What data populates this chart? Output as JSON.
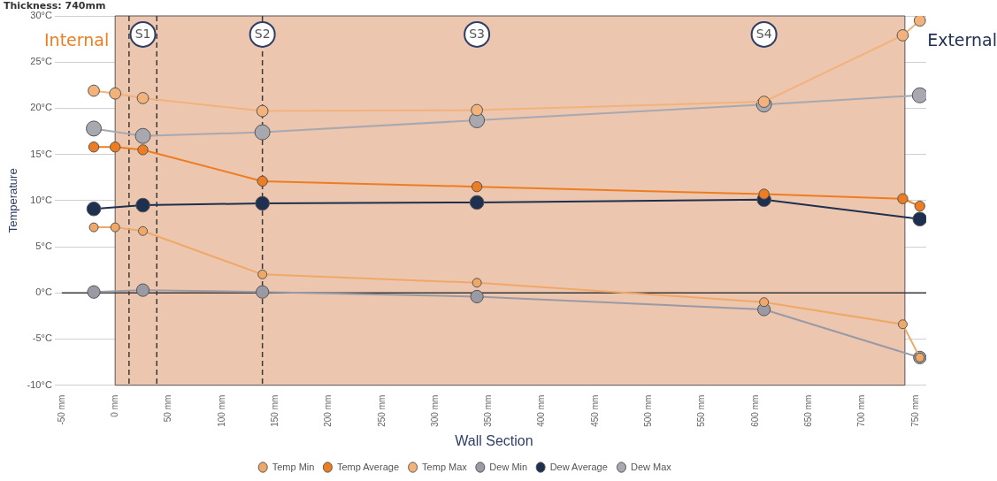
{
  "chart_data": {
    "type": "line",
    "title": "Thickness: 740mm",
    "xlabel": "Wall Section",
    "ylabel": "Temperature",
    "xlim": [
      -50,
      760
    ],
    "xticks": [
      {
        "value": -50,
        "label": "-50 mm"
      },
      {
        "value": 0,
        "label": "0 mm"
      },
      {
        "value": 50,
        "label": "50 mm"
      },
      {
        "value": 100,
        "label": "100 mm"
      },
      {
        "value": 150,
        "label": "150 mm"
      },
      {
        "value": 200,
        "label": "200 mm"
      },
      {
        "value": 250,
        "label": "250 mm"
      },
      {
        "value": 300,
        "label": "300 mm"
      },
      {
        "value": 350,
        "label": "350 mm"
      },
      {
        "value": 400,
        "label": "400 mm"
      },
      {
        "value": 450,
        "label": "450 mm"
      },
      {
        "value": 500,
        "label": "500 mm"
      },
      {
        "value": 550,
        "label": "550 mm"
      },
      {
        "value": 600,
        "label": "600 mm"
      },
      {
        "value": 650,
        "label": "650 mm"
      },
      {
        "value": 700,
        "label": "700 mm"
      },
      {
        "value": 750,
        "label": "750 mm"
      }
    ],
    "ylim": [
      -10,
      30
    ],
    "yticks": [
      {
        "value": -10,
        "label": "-10°C"
      },
      {
        "value": -5,
        "label": "-5°C"
      },
      {
        "value": 0,
        "label": "0°C"
      },
      {
        "value": 5,
        "label": "5°C"
      },
      {
        "value": 10,
        "label": "10°C"
      },
      {
        "value": 15,
        "label": "15°C"
      },
      {
        "value": 20,
        "label": "20°C"
      },
      {
        "value": 25,
        "label": "25°C"
      },
      {
        "value": 30,
        "label": "30°C"
      }
    ],
    "grid": "y",
    "legend": "bottom",
    "marker": "circle",
    "line_style": "solid",
    "series": [
      {
        "name": "Temp Min",
        "color": "#f0a868",
        "x": [
          -20,
          0,
          26,
          138,
          339,
          608,
          738,
          754
        ],
        "values": [
          7.1,
          7.1,
          6.7,
          2.0,
          1.1,
          -1.0,
          -3.4,
          -7.0
        ]
      },
      {
        "name": "Temp Average",
        "color": "#ee7d22",
        "x": [
          -20,
          0,
          26,
          138,
          339,
          608,
          738,
          754
        ],
        "values": [
          15.8,
          15.8,
          15.5,
          12.1,
          11.5,
          10.7,
          10.2,
          9.4
        ]
      },
      {
        "name": "Temp Max",
        "color": "#f3b27a",
        "x": [
          -20,
          0,
          26,
          138,
          339,
          608,
          738,
          754
        ],
        "values": [
          21.9,
          21.6,
          21.1,
          19.7,
          19.8,
          20.7,
          27.9,
          29.5
        ]
      },
      {
        "name": "Dew Min",
        "color": "#9a9aa4",
        "x": [
          -20,
          26,
          138,
          339,
          608,
          754
        ],
        "values": [
          0.1,
          0.3,
          0.1,
          -0.4,
          -1.8,
          -7.0
        ]
      },
      {
        "name": "Dew Average",
        "color": "#1f2f4f",
        "x": [
          -20,
          26,
          138,
          339,
          608,
          754
        ],
        "values": [
          9.1,
          9.5,
          9.7,
          9.8,
          10.1,
          8.0
        ]
      },
      {
        "name": "Dew Max",
        "color": "#a8a8b0",
        "x": [
          -20,
          26,
          138,
          339,
          608,
          754
        ],
        "values": [
          17.8,
          17.0,
          17.4,
          18.7,
          20.4,
          21.4
        ]
      }
    ],
    "bands": [
      {
        "axis": "x",
        "from": 0,
        "to": 740,
        "color": "#ecc6ae"
      }
    ],
    "ref_lines": [
      {
        "axis": "y",
        "value": 0,
        "color": "#3a3a3a",
        "line_style": "solid"
      },
      {
        "axis": "x",
        "value": 13,
        "color": "#3a3a3a",
        "line_style": "dashed"
      },
      {
        "axis": "x",
        "value": 39,
        "color": "#3a3a3a",
        "line_style": "dashed"
      },
      {
        "axis": "x",
        "value": 138,
        "color": "#3a3a3a",
        "line_style": "dashed"
      }
    ],
    "annotations": [
      "Internal",
      "External",
      {
        "text": "S1",
        "x": 26,
        "y": 28
      },
      {
        "text": "S2",
        "x": 138,
        "y": 28
      },
      {
        "text": "S3",
        "x": 339,
        "y": 28
      },
      {
        "text": "S4",
        "x": 608,
        "y": 28
      }
    ]
  }
}
